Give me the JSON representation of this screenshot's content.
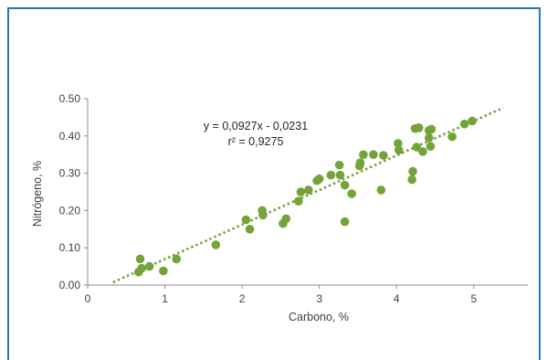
{
  "colors": {
    "border": "#1f78bd",
    "marker": "#74a33a",
    "trendline": "#74a33a",
    "axis": "#8c8c8c",
    "text": "#404040"
  },
  "chart_data": {
    "type": "scatter",
    "xlabel": "Carbono, %",
    "ylabel": "Nitrógeno, %",
    "xlim": [
      0,
      5.7
    ],
    "ylim": [
      0,
      0.5
    ],
    "x_ticks": [
      "0",
      "1",
      "2",
      "3",
      "4",
      "5"
    ],
    "y_ticks": [
      "0.00",
      "0.10",
      "0.20",
      "0.30",
      "0.40",
      "0.50"
    ],
    "grid": false,
    "legend": "none",
    "points": [
      {
        "x": 0.66,
        "y": 0.035
      },
      {
        "x": 0.68,
        "y": 0.07
      },
      {
        "x": 0.7,
        "y": 0.045
      },
      {
        "x": 0.8,
        "y": 0.05
      },
      {
        "x": 0.98,
        "y": 0.038
      },
      {
        "x": 1.15,
        "y": 0.07
      },
      {
        "x": 1.66,
        "y": 0.108
      },
      {
        "x": 2.05,
        "y": 0.175
      },
      {
        "x": 2.1,
        "y": 0.15
      },
      {
        "x": 2.26,
        "y": 0.2
      },
      {
        "x": 2.27,
        "y": 0.188
      },
      {
        "x": 2.53,
        "y": 0.165
      },
      {
        "x": 2.57,
        "y": 0.178
      },
      {
        "x": 2.73,
        "y": 0.225
      },
      {
        "x": 2.76,
        "y": 0.25
      },
      {
        "x": 2.86,
        "y": 0.255
      },
      {
        "x": 2.97,
        "y": 0.28
      },
      {
        "x": 3.0,
        "y": 0.285
      },
      {
        "x": 3.15,
        "y": 0.295
      },
      {
        "x": 3.26,
        "y": 0.322
      },
      {
        "x": 3.27,
        "y": 0.295
      },
      {
        "x": 3.33,
        "y": 0.268
      },
      {
        "x": 3.33,
        "y": 0.17
      },
      {
        "x": 3.42,
        "y": 0.245
      },
      {
        "x": 3.52,
        "y": 0.32
      },
      {
        "x": 3.53,
        "y": 0.328
      },
      {
        "x": 3.57,
        "y": 0.35
      },
      {
        "x": 3.7,
        "y": 0.35
      },
      {
        "x": 3.8,
        "y": 0.255
      },
      {
        "x": 3.83,
        "y": 0.348
      },
      {
        "x": 4.02,
        "y": 0.38
      },
      {
        "x": 4.03,
        "y": 0.362
      },
      {
        "x": 4.2,
        "y": 0.283
      },
      {
        "x": 4.21,
        "y": 0.305
      },
      {
        "x": 4.24,
        "y": 0.42
      },
      {
        "x": 4.26,
        "y": 0.37
      },
      {
        "x": 4.29,
        "y": 0.422
      },
      {
        "x": 4.34,
        "y": 0.358
      },
      {
        "x": 4.42,
        "y": 0.395
      },
      {
        "x": 4.42,
        "y": 0.415
      },
      {
        "x": 4.44,
        "y": 0.372
      },
      {
        "x": 4.45,
        "y": 0.418
      },
      {
        "x": 4.72,
        "y": 0.398
      },
      {
        "x": 4.88,
        "y": 0.432
      },
      {
        "x": 4.98,
        "y": 0.44
      }
    ],
    "trendline": {
      "slope": 0.0927,
      "intercept": -0.0231,
      "x_range": [
        0.33,
        5.38
      ]
    },
    "annotations": [
      "y = 0,0927x - 0,0231",
      "r² = 0,9275"
    ]
  }
}
